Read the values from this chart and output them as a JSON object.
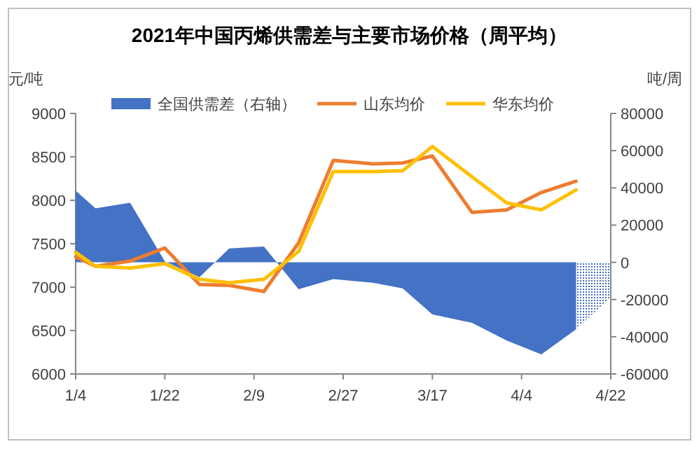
{
  "chart_data": {
    "type": "line",
    "title": "2021年中国丙烯供需差与主要市场价格（周平均）",
    "ylabel": "元/吨",
    "y2label": "吨/周",
    "x": [
      "2021-01-04",
      "2021-01-08",
      "2021-01-15",
      "2021-01-22",
      "2021-01-29",
      "2021-02-04",
      "2021-02-11",
      "2021-02-18",
      "2021-02-25",
      "2021-03-05",
      "2021-03-11",
      "2021-03-17",
      "2021-03-25",
      "2021-04-01",
      "2021-04-08",
      "2021-04-15"
    ],
    "series": [
      {
        "name": "全国供需差（右轴）",
        "type": "area",
        "axis": "y2",
        "color": "#4472c4",
        "values": [
          38500,
          29000,
          32000,
          500,
          -8000,
          7500,
          8500,
          -14500,
          -9000,
          -11000,
          -14000,
          -28000,
          -32500,
          -42000,
          -49500,
          -36000
        ]
      },
      {
        "type": "area",
        "axis": "y2",
        "color": "#4472c4",
        "line_style": "dotted",
        "x": [
          "2021-04-15",
          "2021-04-22"
        ],
        "values": [
          -36000,
          -19000
        ]
      },
      {
        "name": "山东均价",
        "color": "#ed7d31",
        "values": [
          7350,
          7240,
          7300,
          7450,
          7030,
          7020,
          6950,
          7510,
          8460,
          8420,
          8430,
          8510,
          7860,
          7890,
          8090,
          8220
        ]
      },
      {
        "name": "华东均价",
        "color": "#ffc000",
        "values": [
          7400,
          7240,
          7220,
          7270,
          7090,
          7050,
          7090,
          7410,
          8330,
          8330,
          8340,
          8620,
          8270,
          7970,
          7890,
          8120
        ]
      }
    ],
    "xlim": [
      "2021-01-04",
      "2021-04-22"
    ],
    "xticks": [
      {
        "value": "2021-01-04",
        "label": "1/4"
      },
      {
        "value": "2021-01-22",
        "label": "1/22"
      },
      {
        "value": "2021-02-09",
        "label": "2/9"
      },
      {
        "value": "2021-02-27",
        "label": "2/27"
      },
      {
        "value": "2021-03-17",
        "label": "3/17"
      },
      {
        "value": "2021-04-04",
        "label": "4/4"
      },
      {
        "value": "2021-04-22",
        "label": "4/22"
      }
    ],
    "ylim": [
      6000,
      9000
    ],
    "yticks": [
      6000,
      6500,
      7000,
      7500,
      8000,
      8500,
      9000
    ],
    "y2lim": [
      -60000,
      80000
    ],
    "y2ticks": [
      -60000,
      -40000,
      -20000,
      0,
      20000,
      40000,
      60000,
      80000
    ],
    "legend": "top",
    "grid": false
  }
}
